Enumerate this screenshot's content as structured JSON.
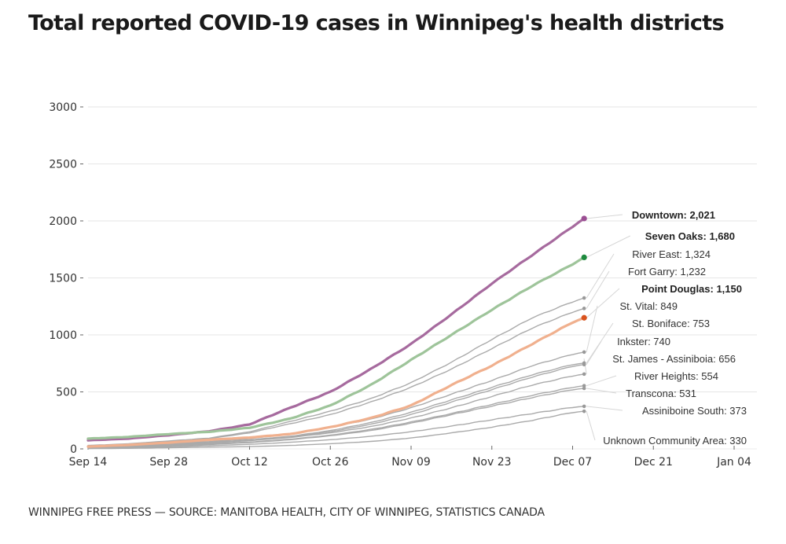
{
  "title": "Total reported COVID-19 cases in Winnipeg's health districts",
  "footer": "WINNIPEG FREE PRESS — SOURCE: MANITOBA HEALTH, CITY OF WINNIPEG, STATISTICS CANADA",
  "chart_data": {
    "type": "line",
    "title": "Total reported COVID-19 cases in Winnipeg's health districts",
    "xlabel": "",
    "ylabel": "",
    "ylim": [
      0,
      3000
    ],
    "yticks": [
      0,
      500,
      1000,
      1500,
      2000,
      2500,
      3000
    ],
    "xlim_days": [
      0,
      112
    ],
    "xticks": [
      {
        "day": 0,
        "label": "Sep 14"
      },
      {
        "day": 14,
        "label": "Sep 28"
      },
      {
        "day": 28,
        "label": "Oct 12"
      },
      {
        "day": 42,
        "label": "Oct 26"
      },
      {
        "day": 56,
        "label": "Nov 09"
      },
      {
        "day": 70,
        "label": "Nov 23"
      },
      {
        "day": 84,
        "label": "Dec 07"
      },
      {
        "day": 98,
        "label": "Dec 21"
      },
      {
        "day": 112,
        "label": "Jan 04"
      }
    ],
    "grid": true,
    "x_days": [
      0,
      7,
      14,
      21,
      28,
      35,
      42,
      49,
      56,
      63,
      70,
      77,
      84,
      86
    ],
    "series": [
      {
        "name": "Downtown",
        "final": "2,021",
        "highlight": true,
        "color": "#a66a9e",
        "dot": "#9b4f93",
        "values": [
          75,
          90,
          120,
          155,
          215,
          360,
          500,
          700,
          920,
          1180,
          1450,
          1700,
          1950,
          2021
        ]
      },
      {
        "name": "Seven Oaks",
        "final": "1,680",
        "highlight": true,
        "color": "#9ec49a",
        "dot": "#1d8a3e",
        "values": [
          90,
          105,
          130,
          150,
          185,
          265,
          380,
          560,
          780,
          1000,
          1220,
          1430,
          1620,
          1680
        ]
      },
      {
        "name": "River East",
        "final": "1,324",
        "highlight": false,
        "color": "#aaaaaa",
        "dot": "#999999",
        "values": [
          30,
          45,
          70,
          95,
          150,
          240,
          330,
          440,
          580,
          760,
          960,
          1150,
          1290,
          1324
        ]
      },
      {
        "name": "Fort Garry",
        "final": "1,232",
        "highlight": false,
        "color": "#aaaaaa",
        "dot": "#999999",
        "values": [
          25,
          40,
          65,
          90,
          140,
          220,
          300,
          410,
          540,
          700,
          880,
          1060,
          1200,
          1232
        ]
      },
      {
        "name": "Point Douglas",
        "final": "1,150",
        "highlight": true,
        "color": "#f0b08e",
        "dot": "#d9531e",
        "values": [
          20,
          35,
          55,
          80,
          100,
          130,
          190,
          270,
          380,
          560,
          730,
          920,
          1110,
          1150
        ]
      },
      {
        "name": "St. Vital",
        "final": "849",
        "highlight": false,
        "color": "#aaaaaa",
        "dot": "#999999",
        "values": [
          15,
          28,
          45,
          65,
          90,
          130,
          190,
          260,
          360,
          480,
          600,
          730,
          830,
          849
        ]
      },
      {
        "name": "St. Boniface",
        "final": "753",
        "highlight": false,
        "color": "#aaaaaa",
        "dot": "#999999",
        "values": [
          15,
          25,
          40,
          58,
          80,
          110,
          160,
          230,
          320,
          430,
          540,
          650,
          740,
          753
        ]
      },
      {
        "name": "Inkster",
        "final": "740",
        "highlight": false,
        "color": "#aaaaaa",
        "dot": "#999999",
        "values": [
          10,
          20,
          35,
          50,
          75,
          105,
          150,
          215,
          300,
          410,
          520,
          630,
          725,
          740
        ]
      },
      {
        "name": "St. James - Assiniboia",
        "final": "656",
        "highlight": false,
        "color": "#aaaaaa",
        "dot": "#999999",
        "values": [
          12,
          22,
          38,
          52,
          72,
          100,
          140,
          195,
          270,
          360,
          460,
          560,
          640,
          656
        ]
      },
      {
        "name": "River Heights",
        "final": "554",
        "highlight": false,
        "color": "#aaaaaa",
        "dot": "#999999",
        "values": [
          10,
          18,
          30,
          45,
          60,
          85,
          120,
          170,
          235,
          310,
          390,
          470,
          540,
          554
        ]
      },
      {
        "name": "Transcona",
        "final": "531",
        "highlight": false,
        "color": "#aaaaaa",
        "dot": "#999999",
        "values": [
          8,
          15,
          25,
          38,
          55,
          80,
          115,
          160,
          225,
          300,
          375,
          450,
          520,
          531
        ]
      },
      {
        "name": "Assiniboine South",
        "final": "373",
        "highlight": false,
        "color": "#aaaaaa",
        "dot": "#999999",
        "values": [
          5,
          10,
          18,
          28,
          40,
          58,
          80,
          110,
          150,
          200,
          255,
          310,
          365,
          373
        ]
      },
      {
        "name": "Unknown Community Area",
        "final": "330",
        "highlight": false,
        "color": "#aaaaaa",
        "dot": "#999999",
        "values": [
          2,
          5,
          10,
          15,
          20,
          30,
          45,
          65,
          95,
          140,
          190,
          250,
          320,
          330
        ]
      }
    ]
  }
}
